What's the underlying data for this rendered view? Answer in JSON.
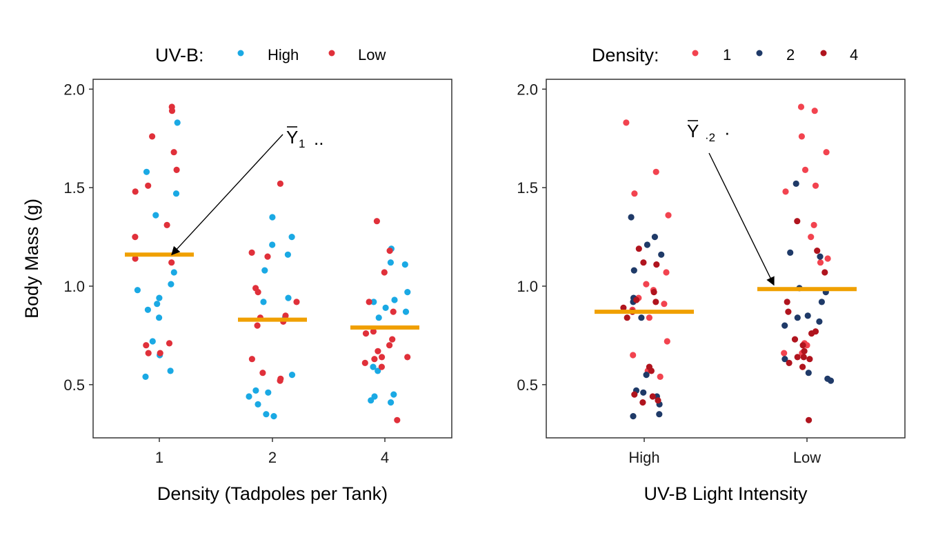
{
  "chart_data": [
    {
      "type": "scatter",
      "title": "",
      "xlabel": "Density (Tadpoles per Tank)",
      "ylabel": "Body Mass (g)",
      "x_categories": [
        "1",
        "2",
        "4"
      ],
      "ylim": [
        0.23,
        2.05
      ],
      "yticks": [
        "0.5",
        "1.0",
        "1.5",
        "2.0"
      ],
      "grid": false,
      "legend": {
        "placement": "top",
        "title": "UV-B:",
        "entries": [
          {
            "label": "High",
            "color": "#1aa9e4"
          },
          {
            "label": "Low",
            "color": "#e0303a"
          }
        ]
      },
      "series": [
        {
          "name": "High",
          "color": "#1aa9e4",
          "points": [
            {
              "x": "1",
              "y": 1.83
            },
            {
              "x": "1",
              "y": 1.58
            },
            {
              "x": "1",
              "y": 1.47
            },
            {
              "x": "1",
              "y": 1.36
            },
            {
              "x": "1",
              "y": 1.07
            },
            {
              "x": "1",
              "y": 1.01
            },
            {
              "x": "1",
              "y": 0.98
            },
            {
              "x": "1",
              "y": 0.94
            },
            {
              "x": "1",
              "y": 0.91
            },
            {
              "x": "1",
              "y": 0.88
            },
            {
              "x": "1",
              "y": 0.84
            },
            {
              "x": "1",
              "y": 0.72
            },
            {
              "x": "1",
              "y": 0.65
            },
            {
              "x": "1",
              "y": 0.57
            },
            {
              "x": "1",
              "y": 0.54
            },
            {
              "x": "2",
              "y": 1.35
            },
            {
              "x": "2",
              "y": 1.25
            },
            {
              "x": "2",
              "y": 1.21
            },
            {
              "x": "2",
              "y": 1.16
            },
            {
              "x": "2",
              "y": 1.08
            },
            {
              "x": "2",
              "y": 0.94
            },
            {
              "x": "2",
              "y": 0.92
            },
            {
              "x": "2",
              "y": 0.84
            },
            {
              "x": "2",
              "y": 0.55
            },
            {
              "x": "2",
              "y": 0.47
            },
            {
              "x": "2",
              "y": 0.46
            },
            {
              "x": "2",
              "y": 0.44
            },
            {
              "x": "2",
              "y": 0.4
            },
            {
              "x": "2",
              "y": 0.35
            },
            {
              "x": "2",
              "y": 0.34
            },
            {
              "x": "4",
              "y": 1.19
            },
            {
              "x": "4",
              "y": 1.12
            },
            {
              "x": "4",
              "y": 1.11
            },
            {
              "x": "4",
              "y": 0.97
            },
            {
              "x": "4",
              "y": 0.93
            },
            {
              "x": "4",
              "y": 0.92
            },
            {
              "x": "4",
              "y": 0.89
            },
            {
              "x": "4",
              "y": 0.87
            },
            {
              "x": "4",
              "y": 0.84
            },
            {
              "x": "4",
              "y": 0.59
            },
            {
              "x": "4",
              "y": 0.57
            },
            {
              "x": "4",
              "y": 0.45
            },
            {
              "x": "4",
              "y": 0.44
            },
            {
              "x": "4",
              "y": 0.42
            },
            {
              "x": "4",
              "y": 0.41
            }
          ]
        },
        {
          "name": "Low",
          "color": "#e0303a",
          "points": [
            {
              "x": "1",
              "y": 1.91
            },
            {
              "x": "1",
              "y": 1.89
            },
            {
              "x": "1",
              "y": 1.76
            },
            {
              "x": "1",
              "y": 1.68
            },
            {
              "x": "1",
              "y": 1.59
            },
            {
              "x": "1",
              "y": 1.51
            },
            {
              "x": "1",
              "y": 1.48
            },
            {
              "x": "1",
              "y": 1.31
            },
            {
              "x": "1",
              "y": 1.25
            },
            {
              "x": "1",
              "y": 1.14
            },
            {
              "x": "1",
              "y": 1.12
            },
            {
              "x": "1",
              "y": 0.71
            },
            {
              "x": "1",
              "y": 0.7
            },
            {
              "x": "1",
              "y": 0.66
            },
            {
              "x": "1",
              "y": 0.66
            },
            {
              "x": "2",
              "y": 1.52
            },
            {
              "x": "2",
              "y": 1.17
            },
            {
              "x": "2",
              "y": 1.15
            },
            {
              "x": "2",
              "y": 0.99
            },
            {
              "x": "2",
              "y": 0.97
            },
            {
              "x": "2",
              "y": 0.92
            },
            {
              "x": "2",
              "y": 0.85
            },
            {
              "x": "2",
              "y": 0.84
            },
            {
              "x": "2",
              "y": 0.82
            },
            {
              "x": "2",
              "y": 0.8
            },
            {
              "x": "2",
              "y": 0.63
            },
            {
              "x": "2",
              "y": 0.56
            },
            {
              "x": "2",
              "y": 0.53
            },
            {
              "x": "2",
              "y": 0.52
            },
            {
              "x": "4",
              "y": 1.33
            },
            {
              "x": "4",
              "y": 1.18
            },
            {
              "x": "4",
              "y": 1.07
            },
            {
              "x": "4",
              "y": 0.92
            },
            {
              "x": "4",
              "y": 0.87
            },
            {
              "x": "4",
              "y": 0.77
            },
            {
              "x": "4",
              "y": 0.76
            },
            {
              "x": "4",
              "y": 0.73
            },
            {
              "x": "4",
              "y": 0.7
            },
            {
              "x": "4",
              "y": 0.67
            },
            {
              "x": "4",
              "y": 0.64
            },
            {
              "x": "4",
              "y": 0.64
            },
            {
              "x": "4",
              "y": 0.63
            },
            {
              "x": "4",
              "y": 0.61
            },
            {
              "x": "4",
              "y": 0.59
            },
            {
              "x": "4",
              "y": 0.32
            }
          ]
        }
      ],
      "means": [
        {
          "x": "1",
          "y": 1.16
        },
        {
          "x": "2",
          "y": 0.83
        },
        {
          "x": "4",
          "y": 0.79
        }
      ],
      "mean_color": "#f0a000",
      "annotation": {
        "symbol": "Y",
        "subscript": "1",
        "suffix": "..",
        "target_x": "1",
        "target_y": 1.16
      }
    },
    {
      "type": "scatter",
      "title": "",
      "xlabel": "UV-B Light Intensity",
      "ylabel": "",
      "x_categories": [
        "High",
        "Low"
      ],
      "ylim": [
        0.23,
        2.05
      ],
      "yticks": [
        "0.5",
        "1.0",
        "1.5",
        "2.0"
      ],
      "grid": false,
      "legend": {
        "placement": "top",
        "title": "Density:",
        "entries": [
          {
            "label": "1",
            "color": "#f2434f"
          },
          {
            "label": "2",
            "color": "#1f3a68"
          },
          {
            "label": "4",
            "color": "#b0141e"
          }
        ]
      },
      "series": [
        {
          "name": "1",
          "color": "#f2434f",
          "points": [
            {
              "x": "High",
              "y": 1.83
            },
            {
              "x": "High",
              "y": 1.58
            },
            {
              "x": "High",
              "y": 1.47
            },
            {
              "x": "High",
              "y": 1.36
            },
            {
              "x": "High",
              "y": 1.07
            },
            {
              "x": "High",
              "y": 1.01
            },
            {
              "x": "High",
              "y": 0.98
            },
            {
              "x": "High",
              "y": 0.94
            },
            {
              "x": "High",
              "y": 0.91
            },
            {
              "x": "High",
              "y": 0.88
            },
            {
              "x": "High",
              "y": 0.84
            },
            {
              "x": "High",
              "y": 0.72
            },
            {
              "x": "High",
              "y": 0.65
            },
            {
              "x": "High",
              "y": 0.57
            },
            {
              "x": "High",
              "y": 0.54
            },
            {
              "x": "Low",
              "y": 1.91
            },
            {
              "x": "Low",
              "y": 1.89
            },
            {
              "x": "Low",
              "y": 1.76
            },
            {
              "x": "Low",
              "y": 1.68
            },
            {
              "x": "Low",
              "y": 1.59
            },
            {
              "x": "Low",
              "y": 1.51
            },
            {
              "x": "Low",
              "y": 1.48
            },
            {
              "x": "Low",
              "y": 1.31
            },
            {
              "x": "Low",
              "y": 1.25
            },
            {
              "x": "Low",
              "y": 1.14
            },
            {
              "x": "Low",
              "y": 1.12
            },
            {
              "x": "Low",
              "y": 0.71
            },
            {
              "x": "Low",
              "y": 0.7
            },
            {
              "x": "Low",
              "y": 0.66
            },
            {
              "x": "Low",
              "y": 0.66
            }
          ]
        },
        {
          "name": "2",
          "color": "#1f3a68",
          "points": [
            {
              "x": "High",
              "y": 1.35
            },
            {
              "x": "High",
              "y": 1.25
            },
            {
              "x": "High",
              "y": 1.21
            },
            {
              "x": "High",
              "y": 1.16
            },
            {
              "x": "High",
              "y": 1.08
            },
            {
              "x": "High",
              "y": 0.94
            },
            {
              "x": "High",
              "y": 0.92
            },
            {
              "x": "High",
              "y": 0.84
            },
            {
              "x": "High",
              "y": 0.55
            },
            {
              "x": "High",
              "y": 0.47
            },
            {
              "x": "High",
              "y": 0.46
            },
            {
              "x": "High",
              "y": 0.44
            },
            {
              "x": "High",
              "y": 0.4
            },
            {
              "x": "High",
              "y": 0.35
            },
            {
              "x": "High",
              "y": 0.34
            },
            {
              "x": "Low",
              "y": 1.52
            },
            {
              "x": "Low",
              "y": 1.17
            },
            {
              "x": "Low",
              "y": 1.15
            },
            {
              "x": "Low",
              "y": 0.99
            },
            {
              "x": "Low",
              "y": 0.97
            },
            {
              "x": "Low",
              "y": 0.92
            },
            {
              "x": "Low",
              "y": 0.85
            },
            {
              "x": "Low",
              "y": 0.84
            },
            {
              "x": "Low",
              "y": 0.82
            },
            {
              "x": "Low",
              "y": 0.8
            },
            {
              "x": "Low",
              "y": 0.63
            },
            {
              "x": "Low",
              "y": 0.56
            },
            {
              "x": "Low",
              "y": 0.53
            },
            {
              "x": "Low",
              "y": 0.52
            }
          ]
        },
        {
          "name": "4",
          "color": "#b0141e",
          "points": [
            {
              "x": "High",
              "y": 1.19
            },
            {
              "x": "High",
              "y": 1.12
            },
            {
              "x": "High",
              "y": 1.11
            },
            {
              "x": "High",
              "y": 0.97
            },
            {
              "x": "High",
              "y": 0.93
            },
            {
              "x": "High",
              "y": 0.92
            },
            {
              "x": "High",
              "y": 0.89
            },
            {
              "x": "High",
              "y": 0.87
            },
            {
              "x": "High",
              "y": 0.84
            },
            {
              "x": "High",
              "y": 0.59
            },
            {
              "x": "High",
              "y": 0.57
            },
            {
              "x": "High",
              "y": 0.45
            },
            {
              "x": "High",
              "y": 0.44
            },
            {
              "x": "High",
              "y": 0.42
            },
            {
              "x": "High",
              "y": 0.41
            },
            {
              "x": "Low",
              "y": 1.33
            },
            {
              "x": "Low",
              "y": 1.18
            },
            {
              "x": "Low",
              "y": 1.07
            },
            {
              "x": "Low",
              "y": 0.92
            },
            {
              "x": "Low",
              "y": 0.87
            },
            {
              "x": "Low",
              "y": 0.77
            },
            {
              "x": "Low",
              "y": 0.76
            },
            {
              "x": "Low",
              "y": 0.73
            },
            {
              "x": "Low",
              "y": 0.7
            },
            {
              "x": "Low",
              "y": 0.67
            },
            {
              "x": "Low",
              "y": 0.64
            },
            {
              "x": "Low",
              "y": 0.64
            },
            {
              "x": "Low",
              "y": 0.63
            },
            {
              "x": "Low",
              "y": 0.61
            },
            {
              "x": "Low",
              "y": 0.59
            },
            {
              "x": "Low",
              "y": 0.32
            }
          ]
        }
      ],
      "means": [
        {
          "x": "High",
          "y": 0.87
        },
        {
          "x": "Low",
          "y": 0.985
        }
      ],
      "mean_color": "#f0a000",
      "annotation": {
        "symbol": "Y",
        "subscript": "·2",
        "suffix": "·",
        "target_x": "Low",
        "target_y": 0.985
      }
    }
  ]
}
